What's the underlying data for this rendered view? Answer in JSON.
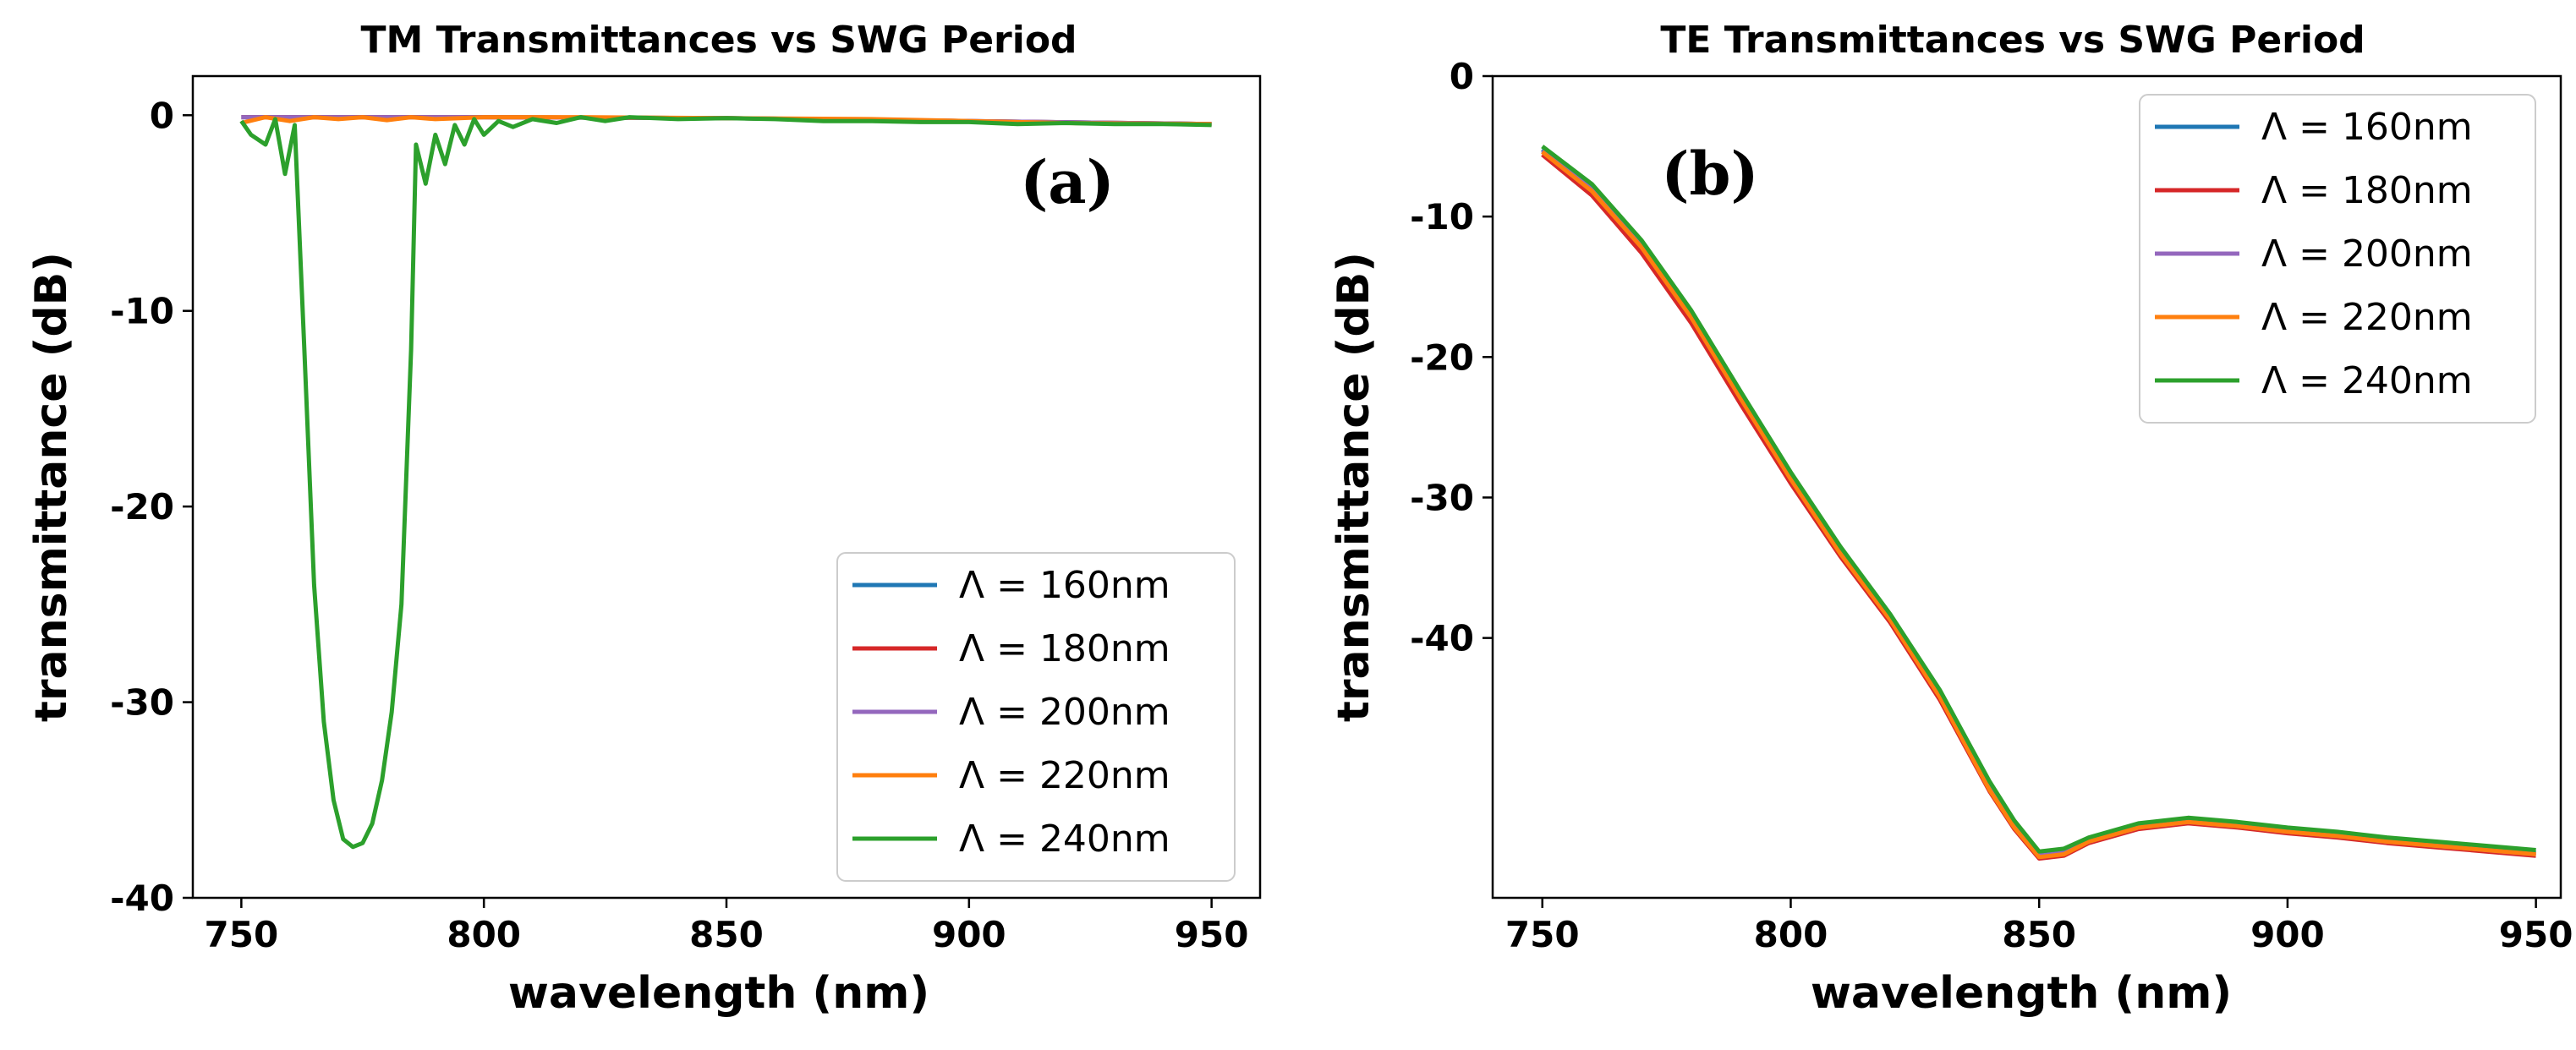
{
  "chart_data": [
    {
      "type": "line",
      "panel_label": "(a)",
      "title": "TM Transmittances vs SWG Period",
      "xlabel": "wavelength (nm)",
      "ylabel": "transmittance (dB)",
      "xlim": [
        740,
        960
      ],
      "ylim": [
        -40,
        2
      ],
      "xticks": [
        750,
        800,
        850,
        900,
        950
      ],
      "xtick_labels": [
        "750",
        "800",
        "850",
        "900",
        "950"
      ],
      "yticks": [
        0,
        -10,
        -20,
        -30,
        -40
      ],
      "ytick_labels": [
        "0",
        "-10",
        "-20",
        "-30",
        "-40"
      ],
      "legend_position": "lower-right",
      "grid": false,
      "series": [
        {
          "name": "Λ = 160nm",
          "color": "#1f77b4",
          "x": [
            750,
            800,
            850,
            900,
            950
          ],
          "y": [
            -0.1,
            -0.1,
            -0.15,
            -0.3,
            -0.45
          ]
        },
        {
          "name": "Λ = 180nm",
          "color": "#d62728",
          "x": [
            750,
            800,
            850,
            900,
            950
          ],
          "y": [
            -0.1,
            -0.1,
            -0.15,
            -0.3,
            -0.45
          ]
        },
        {
          "name": "Λ = 200nm",
          "color": "#9467bd",
          "x": [
            750,
            800,
            850,
            900,
            950
          ],
          "y": [
            -0.1,
            -0.1,
            -0.15,
            -0.3,
            -0.45
          ]
        },
        {
          "name": "Λ = 220nm",
          "color": "#ff7f0e",
          "x": [
            750,
            755,
            760,
            765,
            770,
            775,
            780,
            785,
            790,
            800,
            820,
            850,
            880,
            900,
            920,
            950
          ],
          "y": [
            -0.4,
            -0.1,
            -0.3,
            -0.1,
            -0.2,
            -0.1,
            -0.25,
            -0.1,
            -0.2,
            -0.1,
            -0.1,
            -0.15,
            -0.2,
            -0.3,
            -0.4,
            -0.45
          ]
        },
        {
          "name": "Λ = 240nm",
          "color": "#2ca02c",
          "x": [
            750,
            752,
            755,
            757,
            759,
            761,
            763,
            765,
            767,
            769,
            771,
            773,
            775,
            777,
            779,
            781,
            783,
            785,
            786,
            788,
            790,
            792,
            794,
            796,
            798,
            800,
            803,
            806,
            810,
            815,
            820,
            825,
            830,
            840,
            850,
            860,
            870,
            880,
            890,
            900,
            910,
            920,
            930,
            940,
            950
          ],
          "y": [
            -0.3,
            -1.0,
            -1.5,
            -0.2,
            -3.0,
            -0.5,
            -12.0,
            -24.0,
            -31.0,
            -35.0,
            -37.0,
            -37.4,
            -37.2,
            -36.2,
            -34.0,
            -30.5,
            -25.0,
            -12.0,
            -1.5,
            -3.5,
            -1.0,
            -2.5,
            -0.5,
            -1.5,
            -0.2,
            -1.0,
            -0.3,
            -0.6,
            -0.2,
            -0.4,
            -0.1,
            -0.3,
            -0.1,
            -0.2,
            -0.15,
            -0.2,
            -0.3,
            -0.3,
            -0.35,
            -0.35,
            -0.45,
            -0.4,
            -0.45,
            -0.45,
            -0.5
          ]
        }
      ]
    },
    {
      "type": "line",
      "panel_label": "(b)",
      "title": "TE Transmittances vs SWG Period",
      "xlabel": "wavelength (nm)",
      "ylabel": "transmittance (dB)",
      "xlim": [
        740,
        955
      ],
      "ylim": [
        -58.5,
        0
      ],
      "xticks": [
        750,
        800,
        850,
        900,
        950
      ],
      "xtick_labels": [
        "750",
        "800",
        "850",
        "900",
        "950"
      ],
      "yticks": [
        0,
        -10,
        -20,
        -30,
        -40
      ],
      "ytick_labels": [
        "0",
        "-10",
        "-20",
        "-30",
        "-40"
      ],
      "legend_position": "upper-right",
      "grid": false,
      "series": [
        {
          "name": "Λ = 160nm",
          "color": "#1f77b4",
          "x": [
            750,
            760,
            770,
            780,
            790,
            800,
            810,
            820,
            830,
            840,
            845,
            850,
            855,
            860,
            870,
            880,
            890,
            900,
            910,
            920,
            930,
            940,
            950
          ],
          "y": [
            -5.2,
            -8.0,
            -12.0,
            -17.0,
            -22.8,
            -28.5,
            -33.8,
            -38.5,
            -44.0,
            -50.5,
            -53.2,
            -55.4,
            -55.2,
            -54.4,
            -53.4,
            -53.0,
            -53.3,
            -53.7,
            -54.0,
            -54.4,
            -54.7,
            -55.0,
            -55.3
          ]
        },
        {
          "name": "Λ = 180nm",
          "color": "#d62728",
          "x": [
            750,
            760,
            770,
            780,
            790,
            800,
            810,
            820,
            830,
            840,
            845,
            850,
            855,
            860,
            870,
            880,
            890,
            900,
            910,
            920,
            930,
            940,
            950
          ],
          "y": [
            -5.6,
            -8.5,
            -12.6,
            -17.6,
            -23.4,
            -29.0,
            -34.2,
            -38.9,
            -44.4,
            -50.9,
            -53.6,
            -55.7,
            -55.5,
            -54.6,
            -53.6,
            -53.2,
            -53.5,
            -53.9,
            -54.2,
            -54.6,
            -54.9,
            -55.2,
            -55.5
          ]
        },
        {
          "name": "Λ = 200nm",
          "color": "#9467bd",
          "x": [
            750,
            760,
            770,
            780,
            790,
            800,
            810,
            820,
            830,
            840,
            845,
            850,
            855,
            860,
            870,
            880,
            890,
            900,
            910,
            920,
            930,
            940,
            950
          ],
          "y": [
            -5.3,
            -8.1,
            -12.1,
            -17.1,
            -22.9,
            -28.6,
            -33.9,
            -38.6,
            -44.1,
            -50.6,
            -53.3,
            -55.5,
            -55.3,
            -54.5,
            -53.5,
            -53.1,
            -53.4,
            -53.8,
            -54.1,
            -54.5,
            -54.8,
            -55.1,
            -55.4
          ]
        },
        {
          "name": "Λ = 220nm",
          "color": "#ff7f0e",
          "x": [
            750,
            760,
            770,
            780,
            790,
            800,
            810,
            820,
            830,
            840,
            845,
            850,
            855,
            860,
            870,
            880,
            890,
            900,
            910,
            920,
            930,
            940,
            950
          ],
          "y": [
            -5.4,
            -8.2,
            -12.2,
            -17.2,
            -23.0,
            -28.7,
            -34.0,
            -38.7,
            -44.2,
            -50.8,
            -53.5,
            -55.6,
            -55.4,
            -54.5,
            -53.5,
            -53.1,
            -53.4,
            -53.8,
            -54.1,
            -54.5,
            -54.8,
            -55.1,
            -55.4
          ]
        },
        {
          "name": "Λ = 240nm",
          "color": "#2ca02c",
          "x": [
            750,
            760,
            770,
            780,
            790,
            800,
            810,
            820,
            830,
            840,
            845,
            850,
            855,
            860,
            870,
            880,
            890,
            900,
            910,
            920,
            930,
            940,
            950
          ],
          "y": [
            -5.0,
            -7.7,
            -11.7,
            -16.7,
            -22.5,
            -28.2,
            -33.5,
            -38.3,
            -43.7,
            -50.2,
            -53.0,
            -55.2,
            -55.0,
            -54.2,
            -53.2,
            -52.8,
            -53.1,
            -53.5,
            -53.8,
            -54.2,
            -54.5,
            -54.8,
            -55.1
          ]
        }
      ]
    }
  ]
}
